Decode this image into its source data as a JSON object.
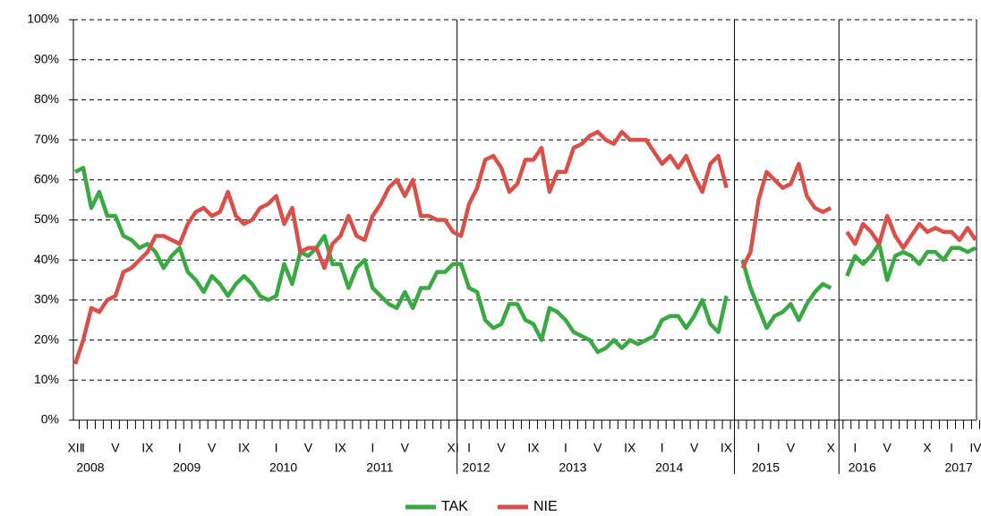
{
  "chart_data": {
    "type": "line",
    "categories": [
      "XII",
      "I",
      null,
      null,
      null,
      "V",
      null,
      null,
      null,
      "IX",
      null,
      null,
      null,
      "I",
      null,
      null,
      null,
      "V",
      null,
      null,
      null,
      "IX",
      null,
      null,
      null,
      "I",
      null,
      null,
      null,
      "V",
      null,
      null,
      null,
      "IX",
      null,
      null,
      null,
      "I",
      null,
      null,
      null,
      "V",
      null,
      null,
      null,
      null,
      null,
      "XI",
      null,
      "I",
      null,
      null,
      null,
      "V",
      null,
      null,
      null,
      "IX",
      null,
      null,
      null,
      "I",
      null,
      null,
      null,
      "V",
      null,
      null,
      null,
      "IX",
      null,
      null,
      null,
      "I",
      null,
      null,
      null,
      "V",
      null,
      null,
      null,
      "IX",
      null,
      null,
      null,
      "I",
      null,
      null,
      null,
      "V",
      null,
      null,
      null,
      null,
      "X",
      null,
      null,
      "I",
      null,
      null,
      null,
      "V",
      null,
      null,
      null,
      null,
      "X",
      null,
      null,
      "I",
      null,
      null,
      "IV"
    ],
    "year_categories": [
      null,
      "2008",
      null,
      null,
      null,
      null,
      null,
      null,
      null,
      null,
      null,
      null,
      null,
      "2009",
      null,
      null,
      null,
      null,
      null,
      null,
      null,
      null,
      null,
      null,
      null,
      "2010",
      null,
      null,
      null,
      null,
      null,
      null,
      null,
      null,
      null,
      null,
      null,
      "2011",
      null,
      null,
      null,
      null,
      null,
      null,
      null,
      null,
      null,
      null,
      null,
      "2012",
      null,
      null,
      null,
      null,
      null,
      null,
      null,
      null,
      null,
      null,
      null,
      "2013",
      null,
      null,
      null,
      null,
      null,
      null,
      null,
      null,
      null,
      null,
      null,
      "2014",
      null,
      null,
      null,
      null,
      null,
      null,
      null,
      null,
      null,
      null,
      null,
      "2015",
      null,
      null,
      null,
      null,
      null,
      null,
      null,
      null,
      null,
      null,
      null,
      "2016",
      null,
      null,
      null,
      null,
      null,
      null,
      null,
      null,
      null,
      null,
      null,
      "2017",
      null,
      null,
      null
    ],
    "series": [
      {
        "name": "TAK",
        "color": "#3aa843",
        "values": [
          62,
          63,
          53,
          57,
          51,
          51,
          46,
          45,
          43,
          44,
          42,
          38,
          41,
          43,
          37,
          35,
          32,
          36,
          34,
          31,
          34,
          36,
          34,
          31,
          30,
          31,
          39,
          34,
          42,
          41,
          43,
          46,
          39,
          39,
          33,
          38,
          40,
          33,
          31,
          29,
          28,
          32,
          28,
          33,
          33,
          37,
          37,
          39,
          39,
          33,
          32,
          25,
          23,
          24,
          29,
          29,
          25,
          24,
          20,
          28,
          27,
          25,
          22,
          21,
          20,
          17,
          18,
          20,
          18,
          20,
          19,
          20,
          21,
          25,
          26,
          26,
          23,
          26,
          30,
          24,
          22,
          31,
          null,
          40,
          33,
          28,
          23,
          26,
          27,
          29,
          25,
          29,
          32,
          34,
          33,
          null,
          36,
          41,
          39,
          41,
          44,
          35,
          41,
          42,
          41,
          39,
          42,
          42,
          40,
          43,
          43,
          42,
          43
        ]
      },
      {
        "name": "NIE",
        "color": "#d8504a",
        "values": [
          14,
          20,
          28,
          27,
          30,
          31,
          37,
          38,
          40,
          42,
          46,
          46,
          45,
          44,
          49,
          52,
          53,
          51,
          52,
          57,
          51,
          49,
          50,
          53,
          54,
          56,
          49,
          53,
          42,
          43,
          43,
          38,
          44,
          46,
          51,
          46,
          45,
          51,
          54,
          58,
          60,
          56,
          60,
          51,
          51,
          50,
          50,
          47,
          46,
          54,
          58,
          65,
          66,
          63,
          57,
          59,
          65,
          65,
          68,
          57,
          62,
          62,
          68,
          69,
          71,
          72,
          70,
          69,
          72,
          70,
          70,
          70,
          67,
          64,
          66,
          63,
          66,
          61,
          57,
          64,
          66,
          58,
          null,
          38,
          42,
          55,
          62,
          60,
          58,
          59,
          64,
          56,
          53,
          52,
          53,
          null,
          47,
          44,
          49,
          47,
          44,
          51,
          46,
          43,
          46,
          49,
          47,
          48,
          47,
          47,
          45,
          48,
          45
        ]
      }
    ],
    "ylim": [
      0,
      100
    ],
    "yticks": [
      {
        "value": 0,
        "label": "0%"
      },
      {
        "value": 10,
        "label": "10%"
      },
      {
        "value": 20,
        "label": "20%"
      },
      {
        "value": 30,
        "label": "30%"
      },
      {
        "value": 40,
        "label": "40%"
      },
      {
        "value": 50,
        "label": "50%"
      },
      {
        "value": 60,
        "label": "60%"
      },
      {
        "value": 70,
        "label": "70%"
      },
      {
        "value": 80,
        "label": "80%"
      },
      {
        "value": 90,
        "label": "90%"
      },
      {
        "value": 100,
        "label": "100%"
      }
    ],
    "grid": true
  }
}
